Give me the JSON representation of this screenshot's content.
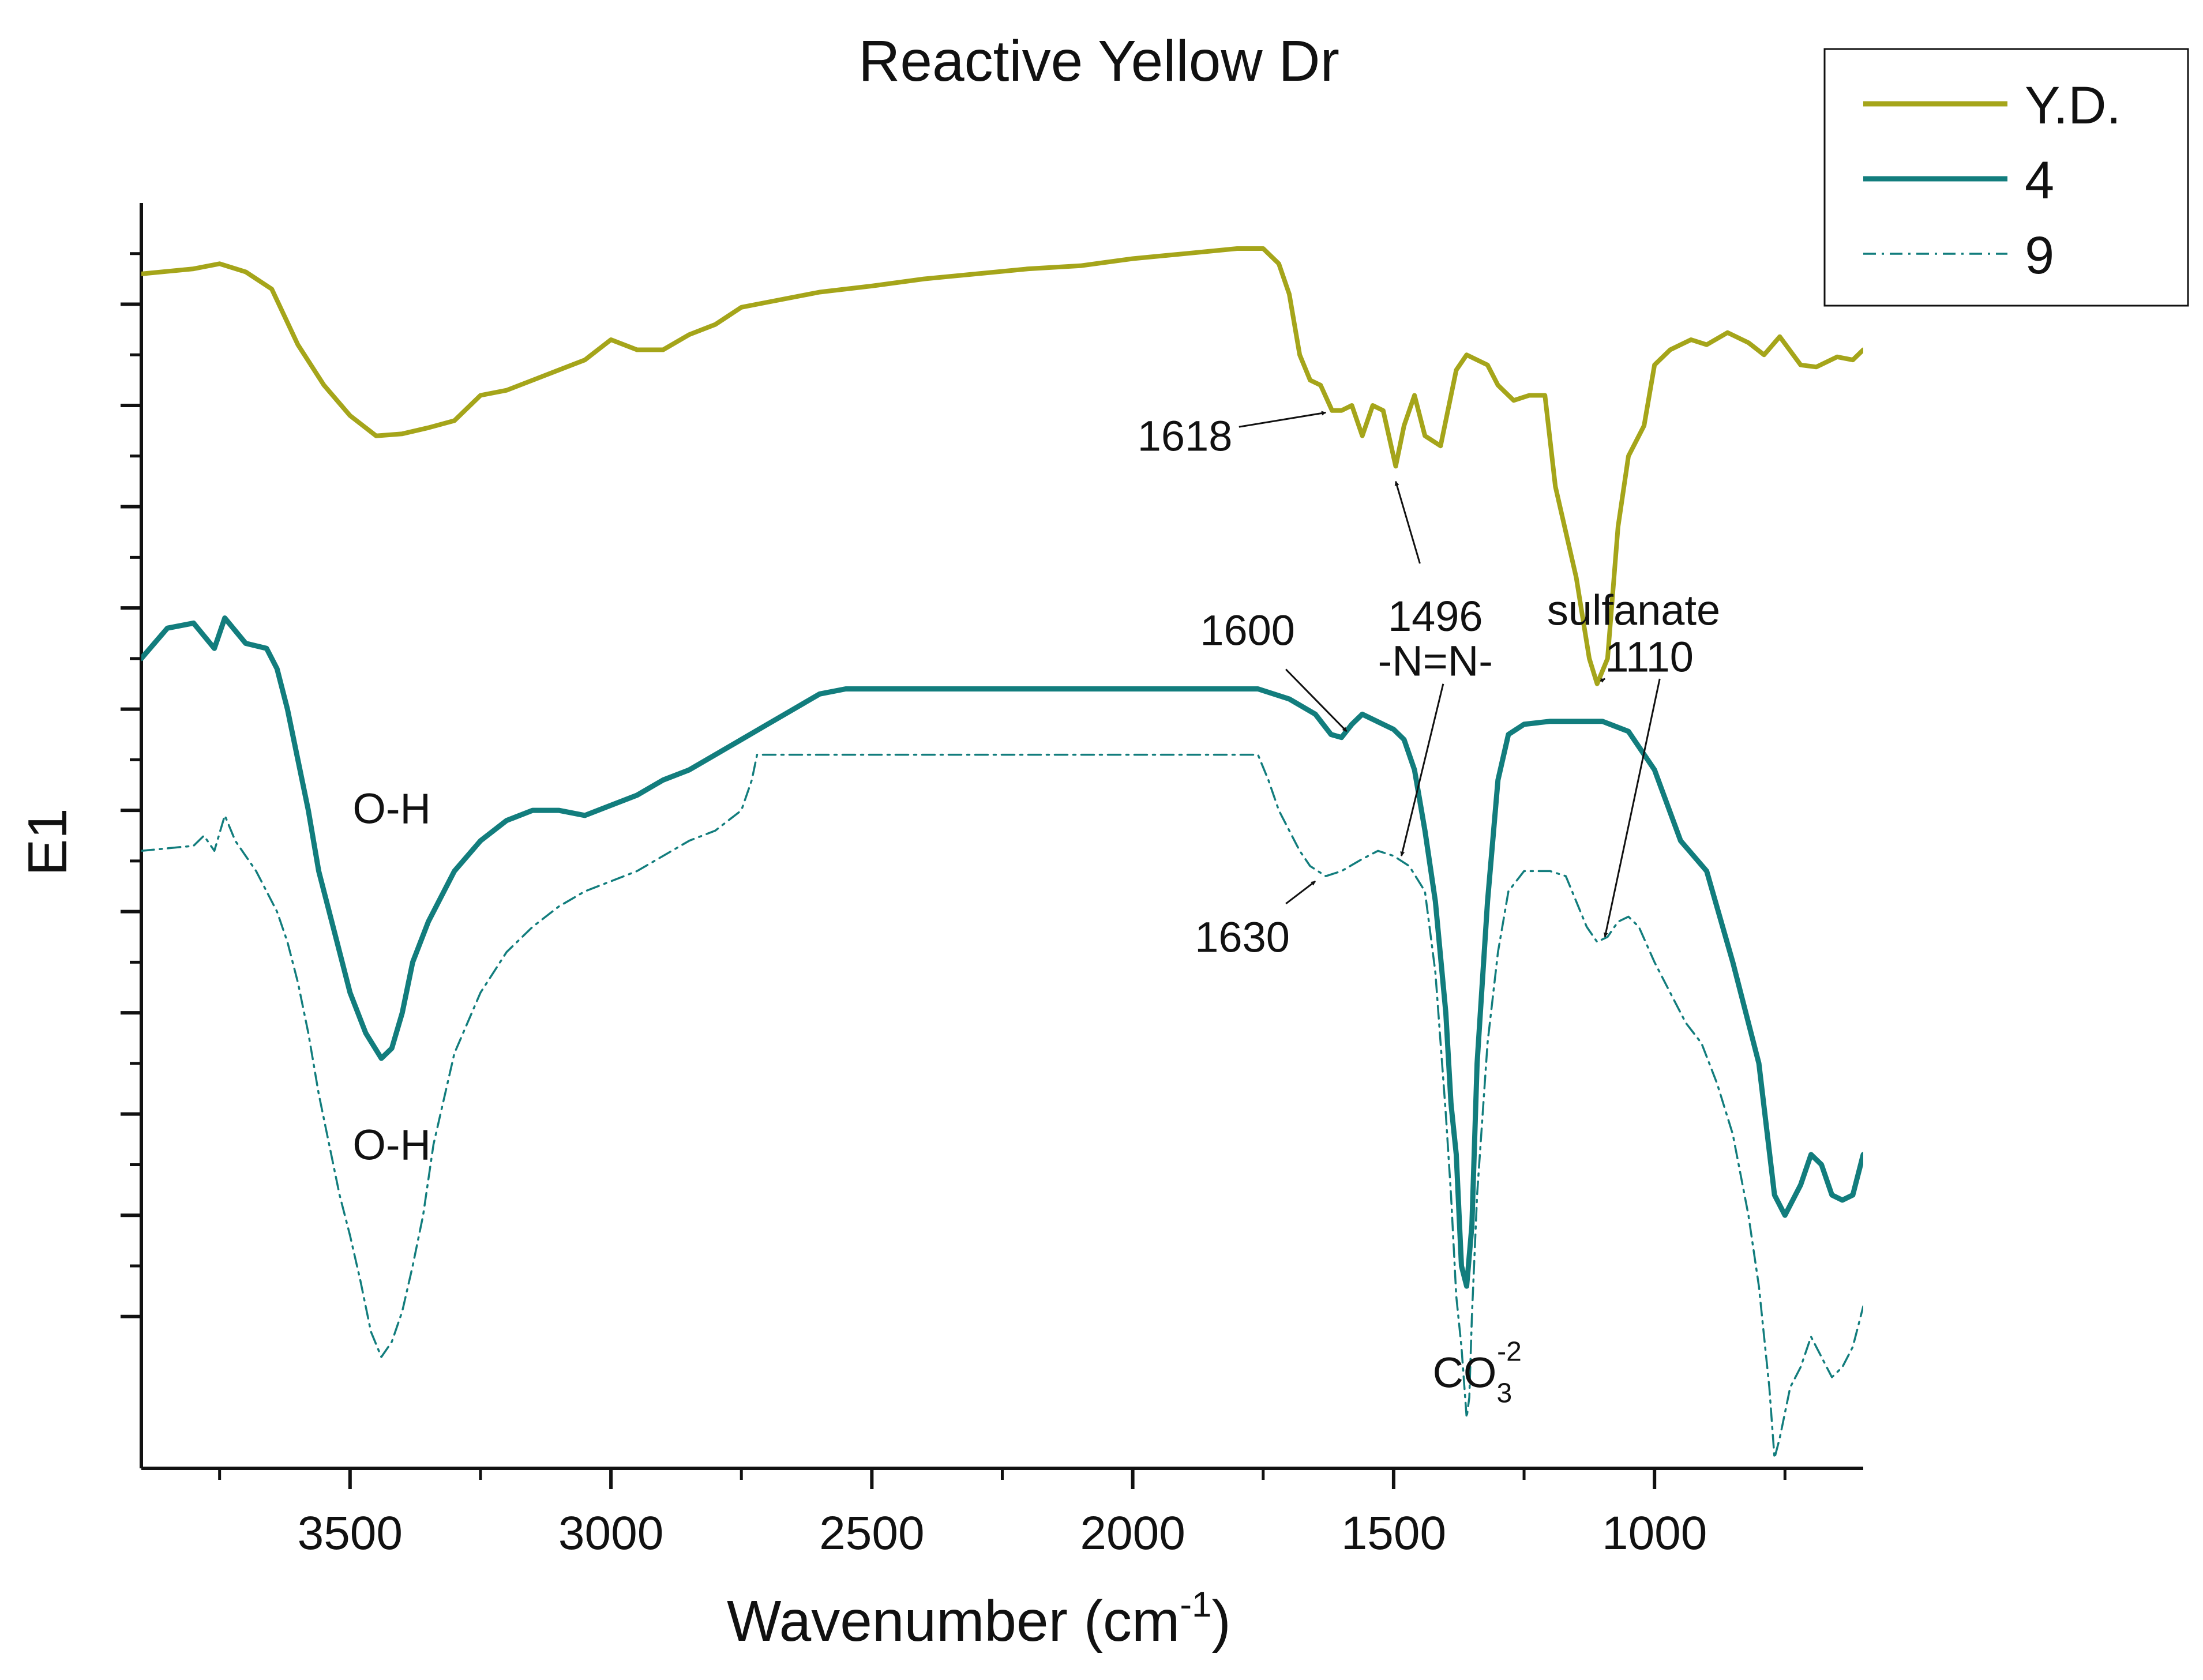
{
  "chart_data": {
    "type": "line",
    "title": "Reactive Yellow Dr",
    "xlabel": "Wavenumber (cm",
    "xlabel_sup": "-1",
    "xlabel_end": ")",
    "ylabel": "E1",
    "xlim": [
      3900,
      600
    ],
    "ylim": [
      -1.5,
      11.0
    ],
    "x_ticks": [
      3500,
      3000,
      2500,
      2000,
      1500,
      1000
    ],
    "x_tick_labels": [
      "3500",
      "3000",
      "2500",
      "2000",
      "1500",
      "1000"
    ],
    "y_ticks": [
      0,
      1,
      2,
      3,
      4,
      5,
      6,
      7,
      8,
      9,
      10
    ],
    "y_tick_labels_shown": false,
    "legend": {
      "position": "top-right",
      "entries": [
        {
          "label": "Y.D.",
          "color": "#a5a51a",
          "style": "solid",
          "weight": "thick"
        },
        {
          "label": "4",
          "color": "#127d7d",
          "style": "solid",
          "weight": "thick"
        },
        {
          "label": "9",
          "color": "#127d7d",
          "style": "dashdot",
          "weight": "thin"
        }
      ]
    },
    "series": [
      {
        "name": "Y.D.",
        "color": "#a5a51a",
        "points": [
          [
            3900,
            10.3
          ],
          [
            3800,
            10.35
          ],
          [
            3750,
            10.4
          ],
          [
            3700,
            10.32
          ],
          [
            3650,
            10.15
          ],
          [
            3600,
            9.6
          ],
          [
            3550,
            9.2
          ],
          [
            3500,
            8.9
          ],
          [
            3450,
            8.7
          ],
          [
            3400,
            8.72
          ],
          [
            3350,
            8.78
          ],
          [
            3300,
            8.85
          ],
          [
            3250,
            9.1
          ],
          [
            3200,
            9.15
          ],
          [
            3150,
            9.25
          ],
          [
            3100,
            9.35
          ],
          [
            3050,
            9.45
          ],
          [
            3000,
            9.65
          ],
          [
            2950,
            9.55
          ],
          [
            2900,
            9.55
          ],
          [
            2850,
            9.7
          ],
          [
            2800,
            9.8
          ],
          [
            2750,
            9.97
          ],
          [
            2700,
            10.02
          ],
          [
            2600,
            10.12
          ],
          [
            2500,
            10.18
          ],
          [
            2400,
            10.25
          ],
          [
            2300,
            10.3
          ],
          [
            2200,
            10.35
          ],
          [
            2100,
            10.38
          ],
          [
            2000,
            10.45
          ],
          [
            1900,
            10.5
          ],
          [
            1800,
            10.55
          ],
          [
            1750,
            10.55
          ],
          [
            1720,
            10.4
          ],
          [
            1700,
            10.1
          ],
          [
            1680,
            9.5
          ],
          [
            1660,
            9.25
          ],
          [
            1640,
            9.2
          ],
          [
            1618,
            8.95
          ],
          [
            1600,
            8.95
          ],
          [
            1580,
            9.0
          ],
          [
            1560,
            8.7
          ],
          [
            1540,
            9.0
          ],
          [
            1520,
            8.95
          ],
          [
            1496,
            8.4
          ],
          [
            1480,
            8.8
          ],
          [
            1460,
            9.1
          ],
          [
            1440,
            8.7
          ],
          [
            1410,
            8.6
          ],
          [
            1380,
            9.35
          ],
          [
            1360,
            9.5
          ],
          [
            1320,
            9.4
          ],
          [
            1300,
            9.2
          ],
          [
            1270,
            9.05
          ],
          [
            1240,
            9.1
          ],
          [
            1210,
            9.1
          ],
          [
            1190,
            8.2
          ],
          [
            1150,
            7.3
          ],
          [
            1125,
            6.5
          ],
          [
            1110,
            6.25
          ],
          [
            1090,
            6.5
          ],
          [
            1070,
            7.8
          ],
          [
            1050,
            8.5
          ],
          [
            1020,
            8.8
          ],
          [
            1000,
            9.4
          ],
          [
            970,
            9.55
          ],
          [
            930,
            9.65
          ],
          [
            900,
            9.6
          ],
          [
            860,
            9.72
          ],
          [
            820,
            9.62
          ],
          [
            790,
            9.5
          ],
          [
            760,
            9.68
          ],
          [
            720,
            9.4
          ],
          [
            690,
            9.38
          ],
          [
            650,
            9.48
          ],
          [
            620,
            9.45
          ],
          [
            600,
            9.55
          ]
        ]
      },
      {
        "name": "4",
        "color": "#127d7d",
        "points": [
          [
            3900,
            6.5
          ],
          [
            3850,
            6.8
          ],
          [
            3800,
            6.85
          ],
          [
            3760,
            6.6
          ],
          [
            3740,
            6.9
          ],
          [
            3700,
            6.65
          ],
          [
            3660,
            6.6
          ],
          [
            3640,
            6.4
          ],
          [
            3620,
            6.0
          ],
          [
            3600,
            5.5
          ],
          [
            3580,
            5.0
          ],
          [
            3560,
            4.4
          ],
          [
            3530,
            3.8
          ],
          [
            3500,
            3.2
          ],
          [
            3470,
            2.8
          ],
          [
            3440,
            2.55
          ],
          [
            3420,
            2.65
          ],
          [
            3400,
            3.0
          ],
          [
            3380,
            3.5
          ],
          [
            3350,
            3.9
          ],
          [
            3300,
            4.4
          ],
          [
            3250,
            4.7
          ],
          [
            3200,
            4.9
          ],
          [
            3150,
            5.0
          ],
          [
            3100,
            5.0
          ],
          [
            3050,
            4.95
          ],
          [
            3000,
            5.05
          ],
          [
            2950,
            5.15
          ],
          [
            2900,
            5.3
          ],
          [
            2850,
            5.4
          ],
          [
            2800,
            5.55
          ],
          [
            2750,
            5.7
          ],
          [
            2700,
            5.85
          ],
          [
            2650,
            6.0
          ],
          [
            2600,
            6.15
          ],
          [
            2550,
            6.2
          ],
          [
            2500,
            6.2
          ],
          [
            2400,
            6.2
          ],
          [
            2300,
            6.2
          ],
          [
            2200,
            6.2
          ],
          [
            2100,
            6.2
          ],
          [
            2000,
            6.2
          ],
          [
            1900,
            6.2
          ],
          [
            1800,
            6.2
          ],
          [
            1760,
            6.2
          ],
          [
            1700,
            6.1
          ],
          [
            1650,
            5.95
          ],
          [
            1620,
            5.75
          ],
          [
            1600,
            5.72
          ],
          [
            1580,
            5.85
          ],
          [
            1560,
            5.95
          ],
          [
            1540,
            5.9
          ],
          [
            1500,
            5.8
          ],
          [
            1480,
            5.7
          ],
          [
            1460,
            5.4
          ],
          [
            1440,
            4.8
          ],
          [
            1420,
            4.1
          ],
          [
            1400,
            3.0
          ],
          [
            1390,
            2.1
          ],
          [
            1380,
            1.6
          ],
          [
            1370,
            0.5
          ],
          [
            1360,
            0.3
          ],
          [
            1350,
            0.9
          ],
          [
            1340,
            2.5
          ],
          [
            1320,
            4.1
          ],
          [
            1300,
            5.3
          ],
          [
            1280,
            5.75
          ],
          [
            1250,
            5.85
          ],
          [
            1200,
            5.88
          ],
          [
            1150,
            5.88
          ],
          [
            1100,
            5.88
          ],
          [
            1050,
            5.78
          ],
          [
            1000,
            5.4
          ],
          [
            950,
            4.7
          ],
          [
            900,
            4.4
          ],
          [
            850,
            3.5
          ],
          [
            800,
            2.5
          ],
          [
            770,
            1.2
          ],
          [
            750,
            1.0
          ],
          [
            720,
            1.3
          ],
          [
            700,
            1.6
          ],
          [
            680,
            1.5
          ],
          [
            660,
            1.2
          ],
          [
            640,
            1.15
          ],
          [
            620,
            1.2
          ],
          [
            600,
            1.6
          ]
        ]
      },
      {
        "name": "9",
        "color": "#127d7d",
        "points": [
          [
            3900,
            4.6
          ],
          [
            3800,
            4.65
          ],
          [
            3780,
            4.75
          ],
          [
            3760,
            4.6
          ],
          [
            3740,
            4.95
          ],
          [
            3720,
            4.7
          ],
          [
            3700,
            4.55
          ],
          [
            3680,
            4.4
          ],
          [
            3660,
            4.2
          ],
          [
            3640,
            4.0
          ],
          [
            3620,
            3.7
          ],
          [
            3600,
            3.3
          ],
          [
            3580,
            2.8
          ],
          [
            3560,
            2.2
          ],
          [
            3540,
            1.7
          ],
          [
            3520,
            1.2
          ],
          [
            3500,
            0.8
          ],
          [
            3480,
            0.35
          ],
          [
            3460,
            -0.15
          ],
          [
            3440,
            -0.4
          ],
          [
            3420,
            -0.25
          ],
          [
            3400,
            0.05
          ],
          [
            3380,
            0.5
          ],
          [
            3360,
            1.0
          ],
          [
            3340,
            1.7
          ],
          [
            3300,
            2.6
          ],
          [
            3250,
            3.2
          ],
          [
            3200,
            3.6
          ],
          [
            3150,
            3.85
          ],
          [
            3100,
            4.05
          ],
          [
            3050,
            4.2
          ],
          [
            3000,
            4.3
          ],
          [
            2950,
            4.4
          ],
          [
            2900,
            4.55
          ],
          [
            2850,
            4.7
          ],
          [
            2800,
            4.8
          ],
          [
            2750,
            5.0
          ],
          [
            2730,
            5.3
          ],
          [
            2720,
            5.55
          ],
          [
            2700,
            5.55
          ],
          [
            2600,
            5.55
          ],
          [
            2500,
            5.55
          ],
          [
            2400,
            5.55
          ],
          [
            2300,
            5.55
          ],
          [
            2200,
            5.55
          ],
          [
            2100,
            5.55
          ],
          [
            2000,
            5.55
          ],
          [
            1900,
            5.55
          ],
          [
            1800,
            5.55
          ],
          [
            1760,
            5.55
          ],
          [
            1740,
            5.3
          ],
          [
            1720,
            5.0
          ],
          [
            1700,
            4.8
          ],
          [
            1680,
            4.6
          ],
          [
            1660,
            4.45
          ],
          [
            1630,
            4.35
          ],
          [
            1600,
            4.4
          ],
          [
            1560,
            4.52
          ],
          [
            1530,
            4.6
          ],
          [
            1500,
            4.55
          ],
          [
            1470,
            4.45
          ],
          [
            1440,
            4.2
          ],
          [
            1420,
            3.4
          ],
          [
            1400,
            2.0
          ],
          [
            1390,
            1.2
          ],
          [
            1380,
            0.2
          ],
          [
            1370,
            -0.3
          ],
          [
            1360,
            -1.0
          ],
          [
            1355,
            -0.8
          ],
          [
            1350,
            0.0
          ],
          [
            1340,
            1.2
          ],
          [
            1320,
            2.7
          ],
          [
            1300,
            3.6
          ],
          [
            1280,
            4.2
          ],
          [
            1250,
            4.4
          ],
          [
            1200,
            4.4
          ],
          [
            1170,
            4.35
          ],
          [
            1150,
            4.1
          ],
          [
            1130,
            3.85
          ],
          [
            1110,
            3.7
          ],
          [
            1090,
            3.75
          ],
          [
            1070,
            3.9
          ],
          [
            1050,
            3.95
          ],
          [
            1030,
            3.85
          ],
          [
            1000,
            3.5
          ],
          [
            970,
            3.2
          ],
          [
            940,
            2.9
          ],
          [
            910,
            2.7
          ],
          [
            880,
            2.3
          ],
          [
            850,
            1.8
          ],
          [
            820,
            1.0
          ],
          [
            800,
            0.3
          ],
          [
            780,
            -0.7
          ],
          [
            770,
            -1.4
          ],
          [
            760,
            -1.2
          ],
          [
            740,
            -0.7
          ],
          [
            720,
            -0.5
          ],
          [
            700,
            -0.2
          ],
          [
            680,
            -0.4
          ],
          [
            660,
            -0.6
          ],
          [
            640,
            -0.5
          ],
          [
            620,
            -0.3
          ],
          [
            600,
            0.1
          ]
        ]
      }
    ],
    "annotations": [
      {
        "text": "1618",
        "x": 1900,
        "y": 8.7,
        "arrow_to": [
          1630,
          8.93
        ]
      },
      {
        "text": "1496",
        "x": 1420,
        "y": 6.92,
        "arrow_to": [
          1496,
          8.25
        ]
      },
      {
        "text": "-N=N-",
        "x": 1420,
        "y": 6.48
      },
      {
        "text": "1600",
        "x": 1780,
        "y": 6.78,
        "arrow_to": [
          1590,
          5.78
        ]
      },
      {
        "text": "sulfanate",
        "x": 1040,
        "y": 6.98
      },
      {
        "text": "1110",
        "x": 1010,
        "y": 6.52,
        "arrow_to": [
          1095,
          6.3
        ]
      },
      {
        "text": "O-H",
        "x": 3420,
        "y": 5.02
      },
      {
        "text": "O-H",
        "x": 3420,
        "y": 1.7
      },
      {
        "text": "1630",
        "x": 1790,
        "y": 3.75,
        "arrow_to": [
          1650,
          4.3
        ]
      },
      {
        "text": "CO",
        "sub": "3",
        "sup": "-2",
        "x": 1340,
        "y": -0.55
      }
    ],
    "extra_arrows": [
      {
        "from": [
          1405,
          6.25
        ],
        "to": [
          1485,
          4.55
        ]
      },
      {
        "from": [
          990,
          6.3
        ],
        "to": [
          1095,
          3.75
        ]
      }
    ]
  }
}
